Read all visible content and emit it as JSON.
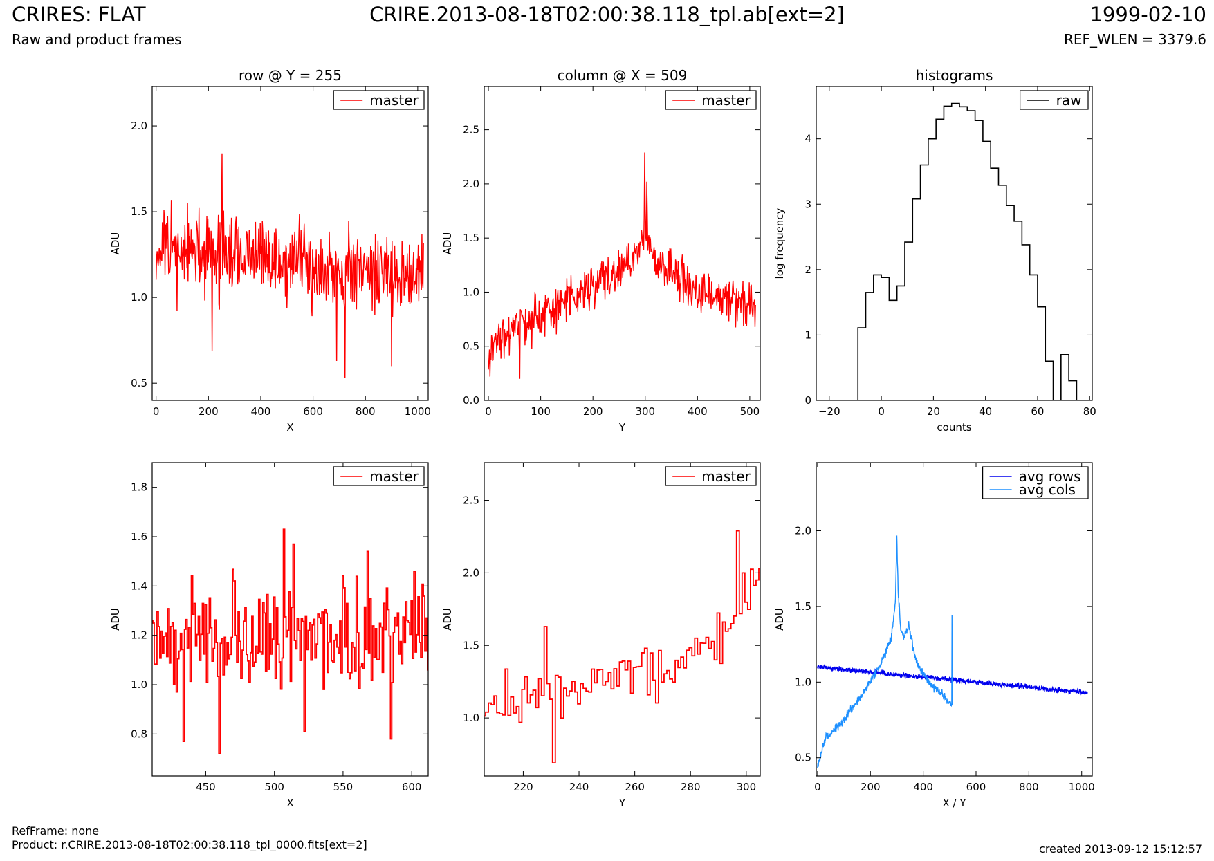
{
  "header": {
    "title": "CRIRES: FLAT",
    "subtitle": "Raw and product frames",
    "file": "CRIRE.2013-08-18T02:00:38.118_tpl.ab[ext=2]",
    "date": "1999-02-10",
    "ref_wlen": "REF_WLEN = 3379.6"
  },
  "footer": {
    "refframe": "RefFrame: none",
    "product": "Product: r.CRIRE.2013-08-18T02:00:38.118_tpl_0000.fits[ext=2]",
    "created": "created 2013-09-12 15:12:57"
  },
  "colors": {
    "master": "#ff0000",
    "raw": "#000000",
    "avg_rows": "#0000ee",
    "avg_cols": "#1e90ff"
  },
  "chart_data": [
    {
      "type": "line",
      "title": "row @ Y = 255",
      "xlabel": "X",
      "ylabel": "ADU",
      "xlim": [
        -15,
        1040
      ],
      "ylim": [
        0.4,
        2.23
      ],
      "xticks": [
        0,
        200,
        400,
        600,
        800,
        1000
      ],
      "yticks": [
        0.5,
        1.0,
        1.5,
        2.0
      ],
      "ytick_labels": [
        "0.5",
        "1.0",
        "1.5",
        "2.0"
      ],
      "legend": "top-right",
      "series": [
        {
          "name": "master",
          "color": "#ff0000",
          "style": "line",
          "x_range": [
            0,
            1023
          ],
          "step": 2,
          "noise": 0.17,
          "seed": 11,
          "trend_x": [
            0,
            1023
          ],
          "trend_y": [
            1.28,
            1.13
          ],
          "spikes": [
            [
              252,
              1.84
            ],
            [
              723,
              0.53
            ],
            [
              690,
              0.63
            ],
            [
              900,
              0.6
            ],
            [
              215,
              0.69
            ]
          ]
        }
      ]
    },
    {
      "type": "line",
      "title": "column @ X = 509",
      "xlabel": "Y",
      "ylabel": "ADU",
      "xlim": [
        -8,
        520
      ],
      "ylim": [
        0.0,
        2.9
      ],
      "xticks": [
        0,
        100,
        200,
        300,
        400,
        500
      ],
      "yticks": [
        0.0,
        0.5,
        1.0,
        1.5,
        2.0,
        2.5
      ],
      "ytick_labels": [
        "0.0",
        "0.5",
        "1.0",
        "1.5",
        "2.0",
        "2.5"
      ],
      "legend": "top-right",
      "series": [
        {
          "name": "master",
          "color": "#ff0000",
          "style": "line",
          "x_range": [
            0,
            511
          ],
          "step": 1,
          "noise": 0.14,
          "seed": 23,
          "trend_x": [
            0,
            100,
            200,
            280,
            300,
            320,
            400,
            511
          ],
          "trend_y": [
            0.5,
            0.78,
            1.05,
            1.3,
            1.55,
            1.32,
            1.0,
            0.88
          ],
          "spikes": [
            [
              299,
              2.29
            ],
            [
              303,
              2.02
            ],
            [
              60,
              0.2
            ],
            [
              3,
              0.22
            ]
          ]
        }
      ]
    },
    {
      "type": "line",
      "title": "histograms",
      "xlabel": "counts",
      "ylabel": "log frequency",
      "xlim": [
        -25,
        81
      ],
      "ylim": [
        0,
        4.8
      ],
      "xticks": [
        -20,
        0,
        20,
        40,
        60,
        80
      ],
      "yticks": [
        0,
        1,
        2,
        3,
        4
      ],
      "ytick_labels": [
        "0",
        "1",
        "2",
        "3",
        "4"
      ],
      "legend": "top-right",
      "series": [
        {
          "name": "raw",
          "color": "#000000",
          "style": "hist",
          "bin_width": 3,
          "bins": [
            [
              -9,
              1.11
            ],
            [
              -6,
              1.65
            ],
            [
              -3,
              1.92
            ],
            [
              0,
              1.88
            ],
            [
              3,
              1.53
            ],
            [
              6,
              1.75
            ],
            [
              9,
              2.42
            ],
            [
              12,
              3.08
            ],
            [
              15,
              3.6
            ],
            [
              18,
              4.0
            ],
            [
              21,
              4.3
            ],
            [
              24,
              4.5
            ],
            [
              27,
              4.54
            ],
            [
              30,
              4.49
            ],
            [
              33,
              4.43
            ],
            [
              36,
              4.28
            ],
            [
              39,
              3.96
            ],
            [
              42,
              3.55
            ],
            [
              45,
              3.29
            ],
            [
              48,
              2.98
            ],
            [
              51,
              2.74
            ],
            [
              54,
              2.38
            ],
            [
              57,
              1.92
            ],
            [
              60,
              1.43
            ],
            [
              63,
              0.6
            ],
            [
              66,
              0.0
            ],
            [
              69,
              0.7
            ],
            [
              72,
              0.3
            ],
            [
              75,
              0.0
            ],
            [
              78,
              0.0
            ],
            [
              81,
              2.18
            ]
          ]
        }
      ]
    },
    {
      "type": "line",
      "title": "",
      "xlabel": "X",
      "ylabel": "ADU",
      "xlim": [
        411,
        612
      ],
      "ylim": [
        0.63,
        1.9
      ],
      "xticks": [
        450,
        500,
        550,
        600
      ],
      "yticks": [
        0.8,
        1.0,
        1.2,
        1.4,
        1.6,
        1.8
      ],
      "ytick_labels": [
        "0.8",
        "1.0",
        "1.2",
        "1.4",
        "1.6",
        "1.8"
      ],
      "legend": "top-right",
      "series": [
        {
          "name": "master",
          "color": "#ff0000",
          "style": "step",
          "x_range": [
            411,
            612
          ],
          "step": 1,
          "noise": 0.15,
          "seed": 37,
          "trend_x": [
            411,
            612
          ],
          "trend_y": [
            1.19,
            1.19
          ],
          "spikes": [
            [
              434,
              0.77
            ],
            [
              460,
              0.72
            ],
            [
              507,
              1.63
            ],
            [
              514,
              1.57
            ],
            [
              522,
              0.81
            ],
            [
              568,
              1.54
            ],
            [
              585,
              0.78
            ],
            [
              602,
              1.46
            ]
          ]
        }
      ]
    },
    {
      "type": "line",
      "title": "",
      "xlabel": "Y",
      "ylabel": "ADU",
      "xlim": [
        206,
        305
      ],
      "ylim": [
        0.6,
        2.76
      ],
      "xticks": [
        220,
        240,
        260,
        280,
        300
      ],
      "yticks": [
        1.0,
        1.5,
        2.0,
        2.5
      ],
      "ytick_labels": [
        "1.0",
        "1.5",
        "2.0",
        "2.5"
      ],
      "legend": "top-right",
      "series": [
        {
          "name": "master",
          "color": "#ff0000",
          "style": "step",
          "x_range": [
            206,
            305
          ],
          "step": 1,
          "noise": 0.13,
          "seed": 53,
          "trend_x": [
            206,
            240,
            270,
            290,
            300,
            305
          ],
          "trend_y": [
            1.1,
            1.22,
            1.3,
            1.55,
            1.85,
            2.0
          ],
          "spikes": [
            [
              231,
              0.69
            ],
            [
              297,
              2.29
            ],
            [
              299,
              2.0
            ],
            [
              228,
              1.63
            ],
            [
              264,
              1.48
            ]
          ]
        }
      ]
    },
    {
      "type": "line",
      "title": "",
      "xlabel": "X / Y",
      "ylabel": "ADU",
      "xlim": [
        -5,
        1040
      ],
      "ylim": [
        0.38,
        2.45
      ],
      "xticks": [
        0,
        200,
        400,
        600,
        800,
        1000
      ],
      "yticks": [
        0.5,
        1.0,
        1.5,
        2.0
      ],
      "ytick_labels": [
        "0.5",
        "1.0",
        "1.5",
        "2.0"
      ],
      "legend": "top-right",
      "series": [
        {
          "name": "avg rows",
          "color": "#0000ee",
          "style": "line",
          "x_range": [
            0,
            1023
          ],
          "step": 1,
          "noise": 0.012,
          "seed": 71,
          "trend_x": [
            0,
            1023
          ],
          "trend_y": [
            1.1,
            0.93
          ],
          "spikes": []
        },
        {
          "name": "avg cols",
          "color": "#1e90ff",
          "style": "line",
          "x_range": [
            0,
            511
          ],
          "step": 1,
          "noise": 0.02,
          "seed": 89,
          "trend_x": [
            0,
            30,
            100,
            180,
            240,
            280,
            295,
            300,
            305,
            315,
            330,
            345,
            370,
            420,
            470,
            505,
            511
          ],
          "trend_y": [
            0.45,
            0.63,
            0.75,
            0.95,
            1.12,
            1.3,
            1.55,
            1.95,
            1.6,
            1.35,
            1.3,
            1.38,
            1.15,
            1.0,
            0.92,
            0.85,
            0.85
          ],
          "spikes": [
            [
              509,
              1.44
            ]
          ]
        }
      ]
    }
  ]
}
